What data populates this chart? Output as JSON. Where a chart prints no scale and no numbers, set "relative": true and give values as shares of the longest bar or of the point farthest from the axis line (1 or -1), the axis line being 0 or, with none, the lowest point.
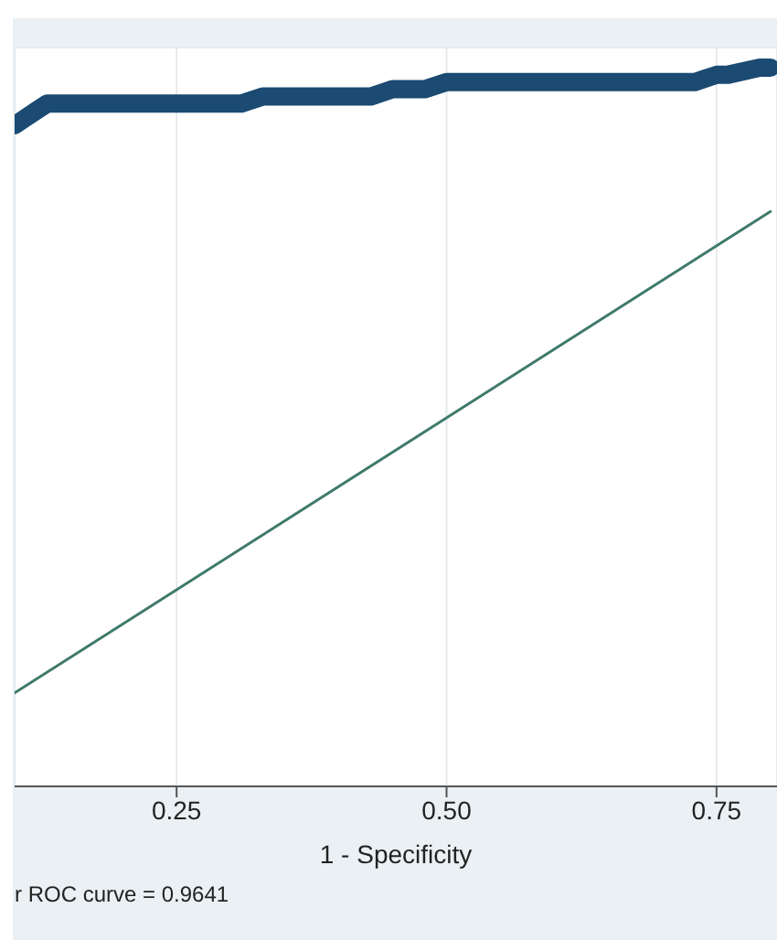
{
  "chart_data": {
    "type": "line",
    "xlabel": "1 - Specificity",
    "annotations": [
      "r ROC curve = 0.9641"
    ],
    "xlim": [
      0.1,
      0.806
    ],
    "relative": true,
    "xticks": [
      0.25,
      {
        "value": 0.5,
        "label": "0.50"
      },
      0.75
    ],
    "grid": true,
    "tick_labels": "x",
    "series": [
      {
        "color": "#1b4a72",
        "x": [
          0.1,
          0.11,
          0.12,
          0.13,
          0.31,
          0.33,
          0.43,
          0.45,
          0.48,
          0.5,
          0.54,
          0.55,
          0.73,
          0.75,
          0.76,
          0.79,
          0.8
        ],
        "values": [
          0.92,
          0.93,
          0.94,
          0.95,
          0.95,
          0.96,
          0.96,
          0.97,
          0.97,
          0.98,
          0.98,
          0.98,
          0.98,
          0.99,
          0.99,
          1.0,
          1.0
        ]
      },
      {
        "color": "#3f7a6b",
        "x": [
          0.1,
          0.8
        ],
        "values": [
          0.13,
          0.8
        ]
      }
    ]
  }
}
